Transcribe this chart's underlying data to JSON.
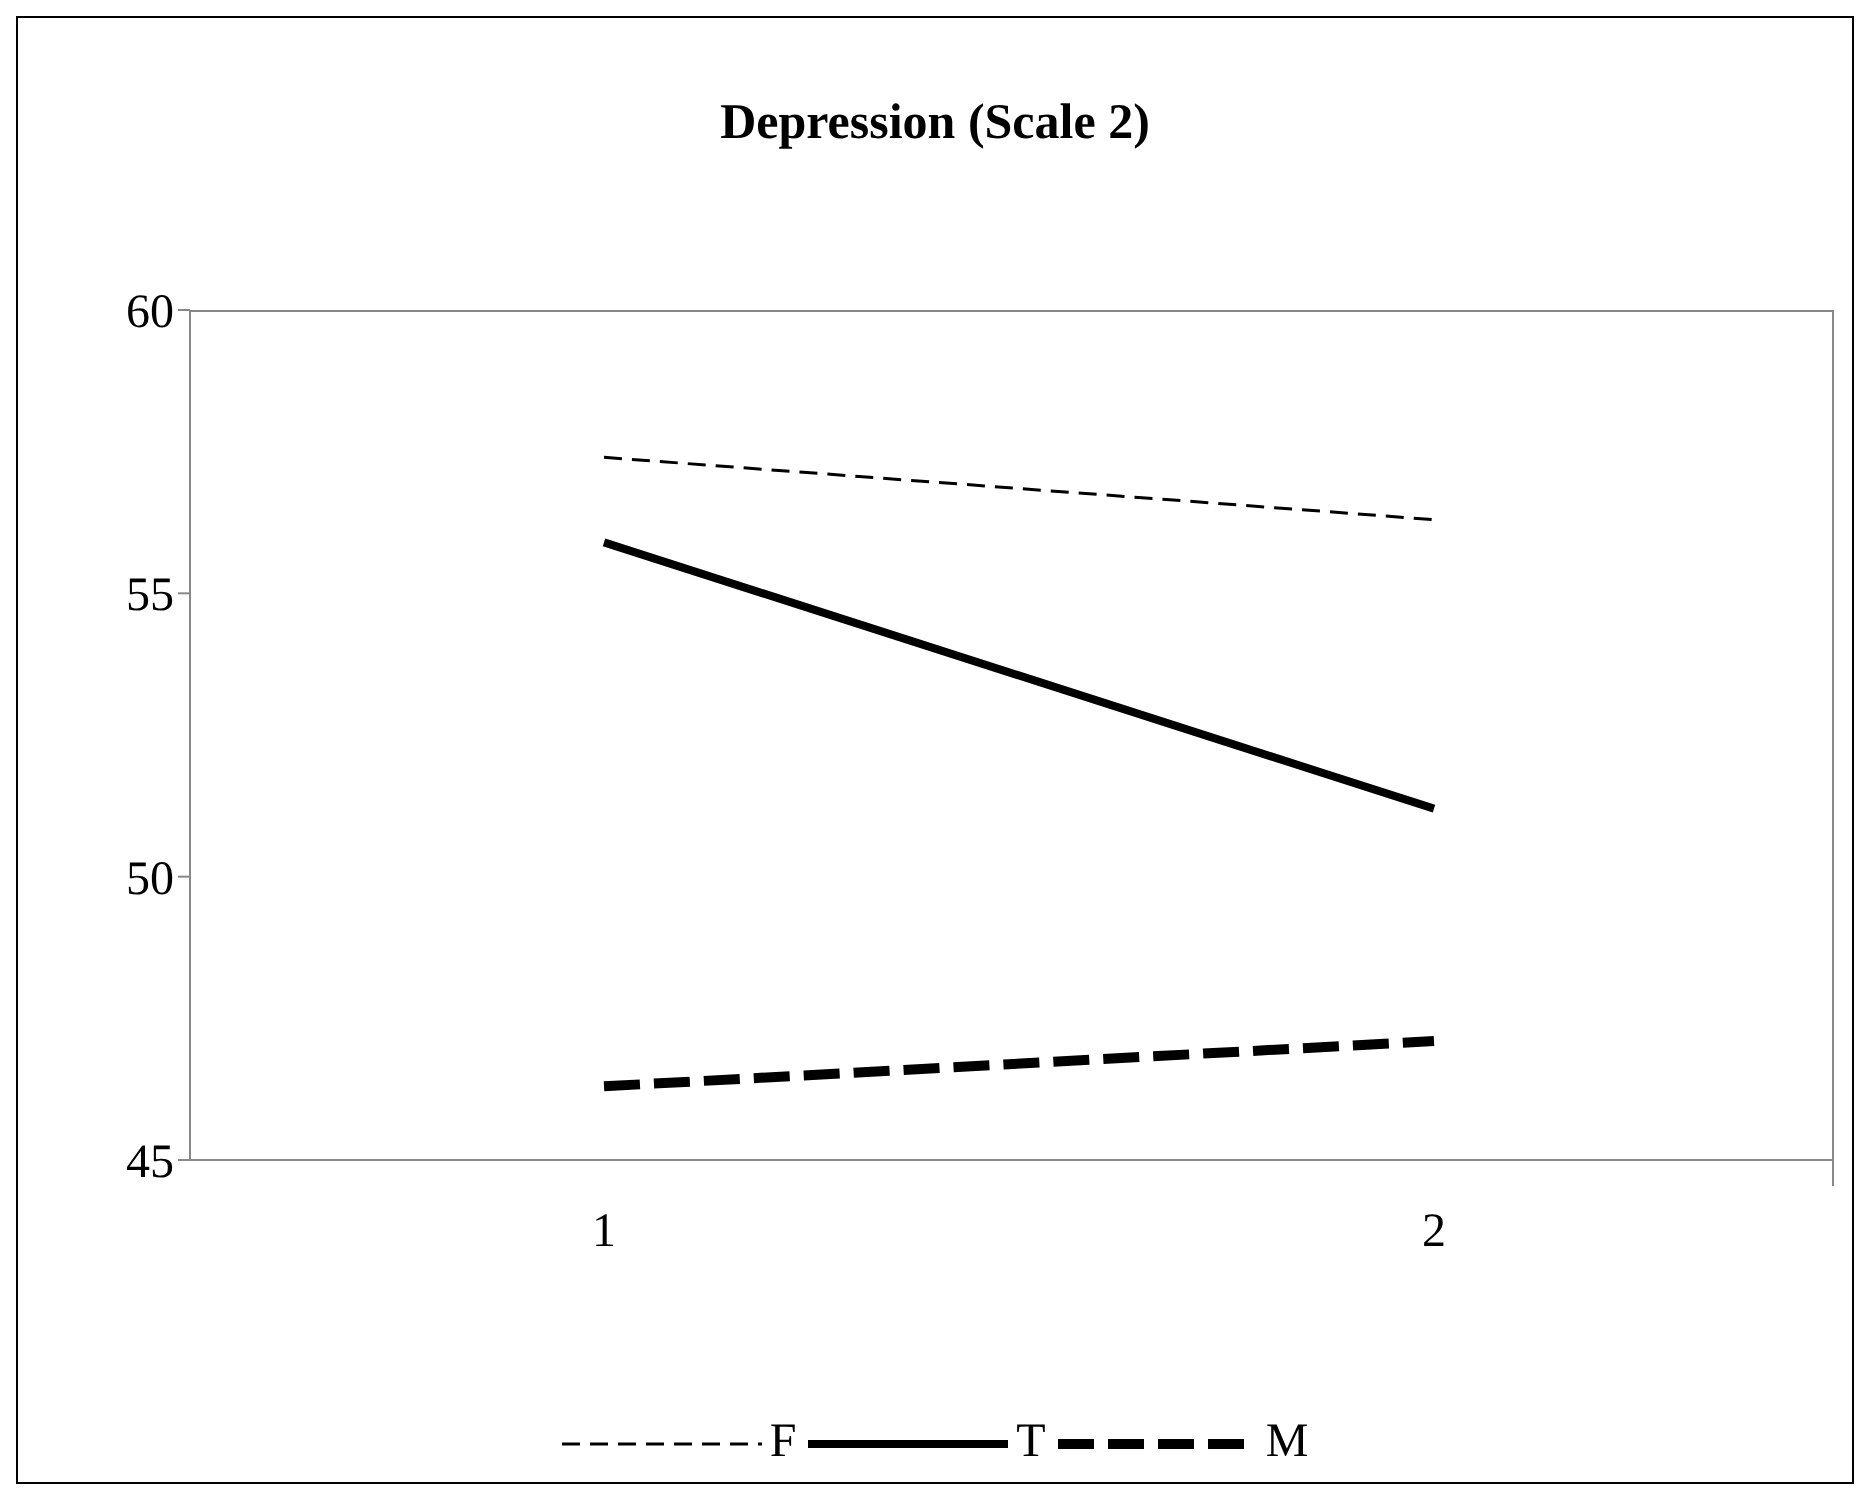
{
  "chart_data": {
    "type": "line",
    "title": "Depression (Scale 2)",
    "categories": [
      "1",
      "2"
    ],
    "series": [
      {
        "name": "F",
        "color": "#000000",
        "values": [
          57.4,
          56.3
        ],
        "line_style": "dashed"
      },
      {
        "name": "T",
        "color": "#000000",
        "values": [
          55.9,
          51.2
        ],
        "line_style": "solid"
      },
      {
        "name": "M",
        "color": "#000000",
        "values": [
          46.3,
          47.1
        ],
        "line_style": "dashed"
      }
    ],
    "ylim": [
      45,
      60
    ],
    "yticks": [
      45,
      50,
      55,
      60
    ],
    "grid": false,
    "legend": "bottom",
    "marker": "none"
  }
}
